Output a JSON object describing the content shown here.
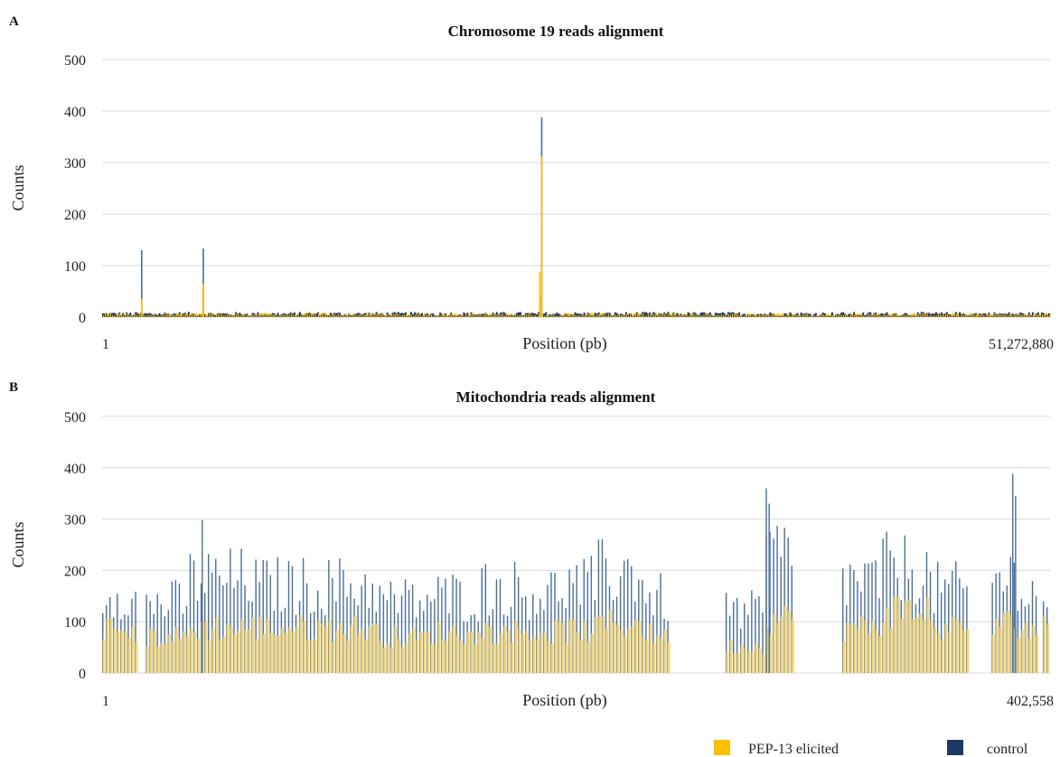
{
  "legend": {
    "items": [
      {
        "label": "PEP-13 elicited",
        "color": "#FFC000"
      },
      {
        "label": "control",
        "color": "#1F3864"
      }
    ]
  },
  "chart_data": [
    {
      "panel": "A",
      "type": "bar",
      "title": "Chromosome 19 reads alignment",
      "xlabel": "Position (pb)",
      "ylabel": "Counts",
      "ylim": [
        0,
        500
      ],
      "yticks": [
        0,
        100,
        200,
        300,
        400,
        500
      ],
      "xlim_labels": [
        "1",
        "51,272,880"
      ],
      "grid": true,
      "series": [
        {
          "name": "PEP-13 elicited",
          "color": "#FFC000",
          "baseline_range": [
            2,
            8
          ],
          "peaks": [
            {
              "x": 0.041,
              "value": 35
            },
            {
              "x": 0.106,
              "value": 65
            },
            {
              "x": 0.461,
              "value": 88
            },
            {
              "x": 0.463,
              "value": 312
            }
          ]
        },
        {
          "name": "control",
          "color": "#1F3864",
          "baseline_range": [
            2,
            10
          ],
          "peaks": [
            {
              "x": 0.041,
              "value": 130
            },
            {
              "x": 0.106,
              "value": 133
            },
            {
              "x": 0.461,
              "value": 40
            },
            {
              "x": 0.463,
              "value": 388
            }
          ]
        }
      ]
    },
    {
      "panel": "B",
      "type": "bar",
      "title": "Mitochondria reads alignment",
      "xlabel": "Position (pb)",
      "ylabel": "Counts",
      "ylim": [
        0,
        500
      ],
      "yticks": [
        0,
        100,
        200,
        300,
        400,
        500
      ],
      "xlim_labels": [
        "1",
        "402,558"
      ],
      "grid": true,
      "series": [
        {
          "name": "PEP-13 elicited",
          "color": "#FFC000",
          "segments": [
            {
              "from": 0.0,
              "to": 0.03,
              "value": 100
            },
            {
              "from": 0.03,
              "to": 0.09,
              "value": 80
            },
            {
              "from": 0.09,
              "to": 0.16,
              "value": 100
            },
            {
              "from": 0.16,
              "to": 0.29,
              "value": 100
            },
            {
              "from": 0.29,
              "to": 0.35,
              "value": 80
            },
            {
              "from": 0.35,
              "to": 0.4,
              "value": 90
            },
            {
              "from": 0.4,
              "to": 0.44,
              "value": 95
            },
            {
              "from": 0.44,
              "to": 0.48,
              "value": 90
            },
            {
              "from": 0.48,
              "to": 0.52,
              "value": 95
            },
            {
              "from": 0.52,
              "to": 0.57,
              "value": 110
            },
            {
              "from": 0.57,
              "to": 0.6,
              "value": 85
            },
            {
              "from": 0.65,
              "to": 0.7,
              "value": 60
            },
            {
              "from": 0.7,
              "to": 0.73,
              "value": 120
            },
            {
              "from": 0.78,
              "to": 0.82,
              "value": 100
            },
            {
              "from": 0.82,
              "to": 0.87,
              "value": 140
            },
            {
              "from": 0.87,
              "to": 0.94,
              "value": 100
            },
            {
              "from": 0.94,
              "to": 0.97,
              "value": 110
            },
            {
              "from": 0.97,
              "to": 1.0,
              "value": 100
            }
          ],
          "gaps": [
            [
              0.035,
              0.045
            ],
            [
              0.6,
              0.655
            ],
            [
              0.74,
              0.75
            ],
            [
              0.915,
              0.935
            ],
            [
              0.985,
              0.99
            ]
          ]
        },
        {
          "name": "control",
          "color": "#1F3864",
          "segments": [
            {
              "from": 0.0,
              "to": 0.03,
              "value": 190
            },
            {
              "from": 0.03,
              "to": 0.09,
              "value": 160
            },
            {
              "from": 0.09,
              "to": 0.16,
              "value": 215
            },
            {
              "from": 0.16,
              "to": 0.29,
              "value": 200
            },
            {
              "from": 0.29,
              "to": 0.35,
              "value": 165
            },
            {
              "from": 0.35,
              "to": 0.4,
              "value": 175
            },
            {
              "from": 0.4,
              "to": 0.44,
              "value": 195
            },
            {
              "from": 0.44,
              "to": 0.48,
              "value": 185
            },
            {
              "from": 0.48,
              "to": 0.52,
              "value": 200
            },
            {
              "from": 0.52,
              "to": 0.57,
              "value": 230
            },
            {
              "from": 0.57,
              "to": 0.6,
              "value": 170
            },
            {
              "from": 0.65,
              "to": 0.7,
              "value": 140
            },
            {
              "from": 0.7,
              "to": 0.73,
              "value": 270
            },
            {
              "from": 0.78,
              "to": 0.82,
              "value": 210
            },
            {
              "from": 0.82,
              "to": 0.87,
              "value": 240
            },
            {
              "from": 0.87,
              "to": 0.94,
              "value": 190
            },
            {
              "from": 0.94,
              "to": 0.97,
              "value": 220
            },
            {
              "from": 0.97,
              "to": 1.0,
              "value": 180
            }
          ],
          "peaks": [
            {
              "x": 0.105,
              "value": 298
            },
            {
              "x": 0.7,
              "value": 360
            },
            {
              "x": 0.703,
              "value": 330
            },
            {
              "x": 0.96,
              "value": 388
            },
            {
              "x": 0.963,
              "value": 345
            }
          ]
        }
      ]
    }
  ]
}
